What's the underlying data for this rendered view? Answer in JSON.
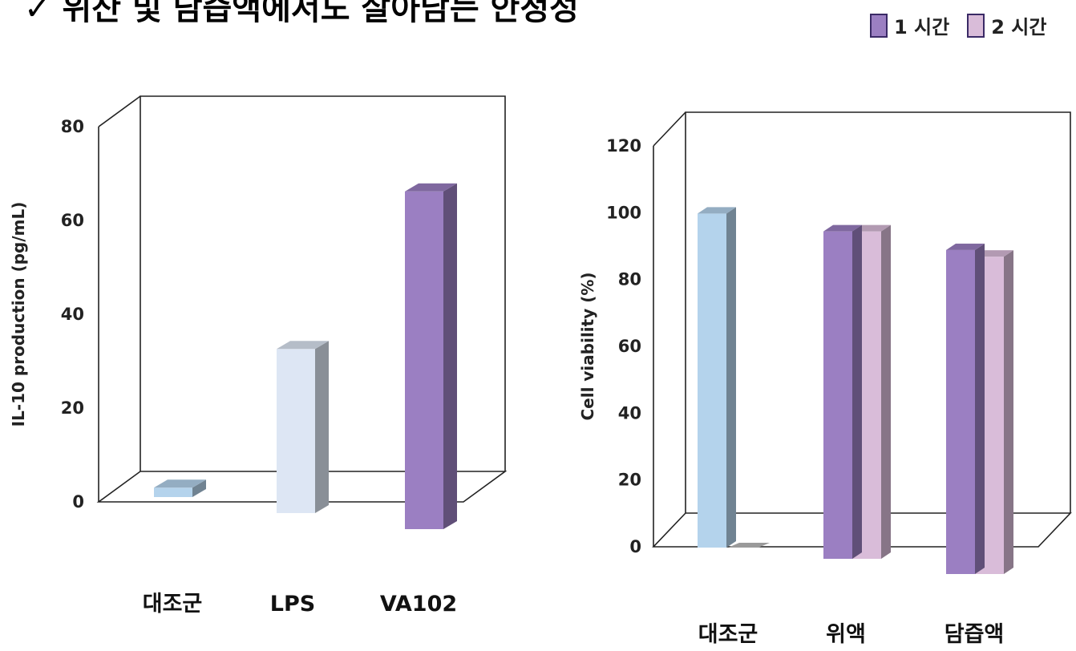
{
  "headline": "✓ 위산 및 담즙액에서도 살아남는 안정성",
  "legend": [
    {
      "label": "1 시간",
      "color": "#9b7fc2"
    },
    {
      "label": "2 시간",
      "color": "#d9bcd9"
    }
  ],
  "chart_data": [
    {
      "type": "bar",
      "categories": [
        "대조군",
        "LPS",
        "VA102"
      ],
      "values": [
        2,
        35,
        72
      ],
      "bar_colors": [
        "#b4d3ec",
        "#dde6f4",
        "#9b7fc2"
      ],
      "ylabel": "IL-10 production (pg/mL)",
      "ylim": [
        0,
        80
      ],
      "yticks": [
        0,
        20,
        40,
        60,
        80
      ],
      "grid": false,
      "style": "3d"
    },
    {
      "type": "bar",
      "categories": [
        "대조군",
        "위액",
        "담즙액"
      ],
      "series": [
        {
          "name": "1 시간",
          "values": [
            100,
            98,
            97
          ]
        },
        {
          "name": "2 시간",
          "values": [
            0,
            98,
            95
          ]
        }
      ],
      "control_color": "#b4d3ec",
      "series_colors": [
        "#9b7fc2",
        "#d9bcd9"
      ],
      "ylabel": "Cell viability (%)",
      "ylim": [
        0,
        120
      ],
      "yticks": [
        0,
        20,
        40,
        60,
        80,
        100,
        120
      ],
      "grid": false,
      "legend_position": "top-right",
      "style": "3d"
    }
  ]
}
